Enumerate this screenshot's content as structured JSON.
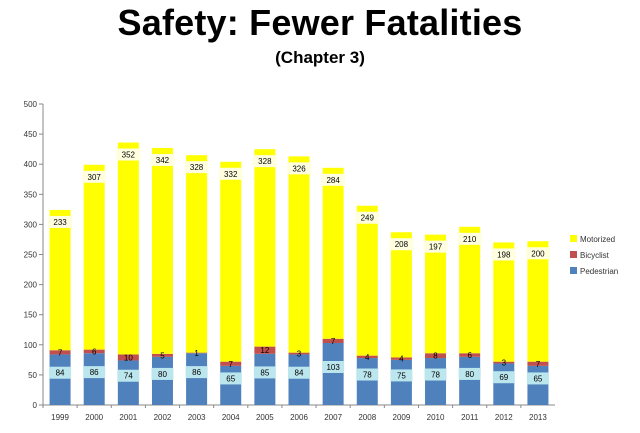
{
  "title": "Safety: Fewer Fatalities",
  "subtitle": "(Chapter 3)",
  "chart_data": {
    "type": "bar",
    "stacked": true,
    "categories": [
      "1999",
      "2000",
      "2001",
      "2002",
      "2003",
      "2004",
      "2005",
      "2006",
      "2007",
      "2008",
      "2009",
      "2010",
      "2011",
      "2012",
      "2013"
    ],
    "series": [
      {
        "name": "Pedestrian",
        "color": "#4F81BD",
        "values": [
          84,
          86,
          74,
          80,
          86,
          65,
          85,
          84,
          103,
          78,
          75,
          78,
          80,
          69,
          65
        ]
      },
      {
        "name": "Bicyclist",
        "color": "#C0504D",
        "values": [
          7,
          6,
          10,
          5,
          1,
          7,
          12,
          3,
          7,
          4,
          4,
          8,
          6,
          3,
          7
        ]
      },
      {
        "name": "Motorized",
        "color": "#FFFF00",
        "values": [
          233,
          307,
          352,
          342,
          328,
          332,
          328,
          326,
          284,
          249,
          208,
          197,
          210,
          198,
          200
        ]
      }
    ],
    "yticks": [
      "0",
      "50",
      "100",
      "150",
      "200",
      "250",
      "300",
      "350",
      "400",
      "450",
      "500"
    ],
    "ylim": [
      0,
      500
    ],
    "legend": [
      "Motorized",
      "Bicyclist",
      "Pedestrian"
    ],
    "legend_position": "right"
  }
}
